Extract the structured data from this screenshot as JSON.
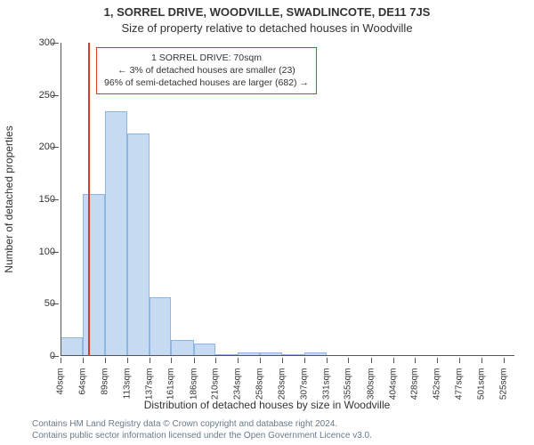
{
  "title_line1": "1, SORREL DRIVE, WOODVILLE, SWADLINCOTE, DE11 7JS",
  "title_line2": "Size of property relative to detached houses in Woodville",
  "ylabel": "Number of detached properties",
  "xlabel": "Distribution of detached houses by size in Woodville",
  "footer_line1": "Contains HM Land Registry data © Crown copyright and database right 2024.",
  "footer_line2": "Contains public sector information licensed under the Open Government Licence v3.0.",
  "info_box": {
    "line1": "1 SORREL DRIVE: 70sqm",
    "line2": "← 3% of detached houses are smaller (23)",
    "line3": "96% of semi-detached houses are larger (682) →"
  },
  "chart": {
    "type": "histogram",
    "ylim": [
      0,
      300
    ],
    "ytick_step": 50,
    "yticks": [
      0,
      50,
      100,
      150,
      200,
      250,
      300
    ],
    "xlim": [
      40,
      537
    ],
    "xtick_values": [
      40,
      64,
      89,
      113,
      137,
      161,
      186,
      210,
      234,
      258,
      283,
      307,
      331,
      355,
      380,
      404,
      428,
      452,
      477,
      501,
      525
    ],
    "xtick_unit": "sqm",
    "bar_fill": "#c6daf2",
    "bar_stroke": "#8fb5e3",
    "axis_color": "#555555",
    "background_color": "#ffffff",
    "marker_color": "#d43c2e",
    "marker_x": 70,
    "title_fontsize": 13,
    "label_fontsize": 12,
    "tick_fontsize": 11,
    "bars": [
      {
        "x0": 40,
        "x1": 64,
        "value": 18
      },
      {
        "x0": 64,
        "x1": 89,
        "value": 155
      },
      {
        "x0": 89,
        "x1": 113,
        "value": 234
      },
      {
        "x0": 113,
        "x1": 137,
        "value": 213
      },
      {
        "x0": 137,
        "x1": 161,
        "value": 56
      },
      {
        "x0": 161,
        "x1": 186,
        "value": 15
      },
      {
        "x0": 186,
        "x1": 210,
        "value": 12
      },
      {
        "x0": 210,
        "x1": 234,
        "value": 2
      },
      {
        "x0": 234,
        "x1": 258,
        "value": 3
      },
      {
        "x0": 258,
        "x1": 283,
        "value": 3
      },
      {
        "x0": 283,
        "x1": 307,
        "value": 2
      },
      {
        "x0": 307,
        "x1": 331,
        "value": 3
      }
    ]
  }
}
